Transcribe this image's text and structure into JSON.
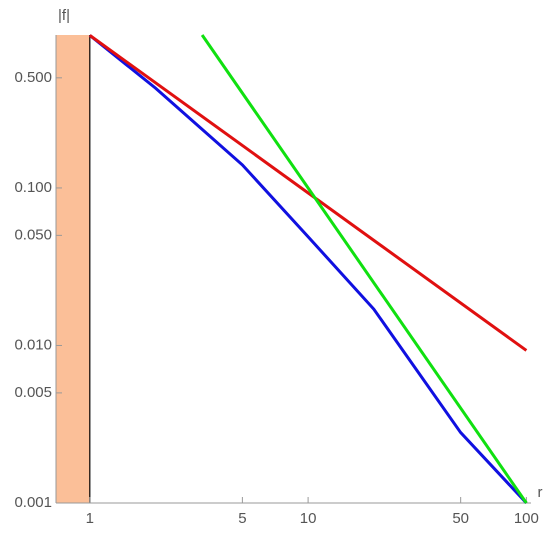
{
  "chart_data": {
    "type": "line",
    "xlabel": "r",
    "ylabel": "|f|",
    "xlog": true,
    "ylog": true,
    "xlim": [
      0.7,
      105
    ],
    "ylim": [
      0.001,
      0.935
    ],
    "xticks": [
      1,
      5,
      10,
      50,
      100
    ],
    "yticks": [
      0.001,
      0.005,
      {
        "value": 0.01,
        "label": "0.010"
      },
      {
        "value": 0.05,
        "label": "0.050"
      },
      {
        "value": 0.1,
        "label": "0.100"
      },
      {
        "value": 0.5,
        "label": "0.500"
      }
    ],
    "shaded_x": [
      0.7,
      1
    ],
    "shaded_color": "#fbbf98",
    "series": [
      {
        "color": "#1010e0",
        "x": [
          1,
          2,
          5,
          10,
          20,
          50,
          100
        ],
        "values": [
          0.93,
          0.43,
          0.14,
          0.049,
          0.017,
          0.0028,
          0.001
        ]
      },
      {
        "color": "#e01010",
        "x": [
          1,
          100
        ],
        "values": [
          0.93,
          0.0093
        ]
      },
      {
        "color": "#10e010",
        "x": [
          3.27,
          100
        ],
        "values": [
          0.935,
          0.001
        ]
      }
    ]
  }
}
